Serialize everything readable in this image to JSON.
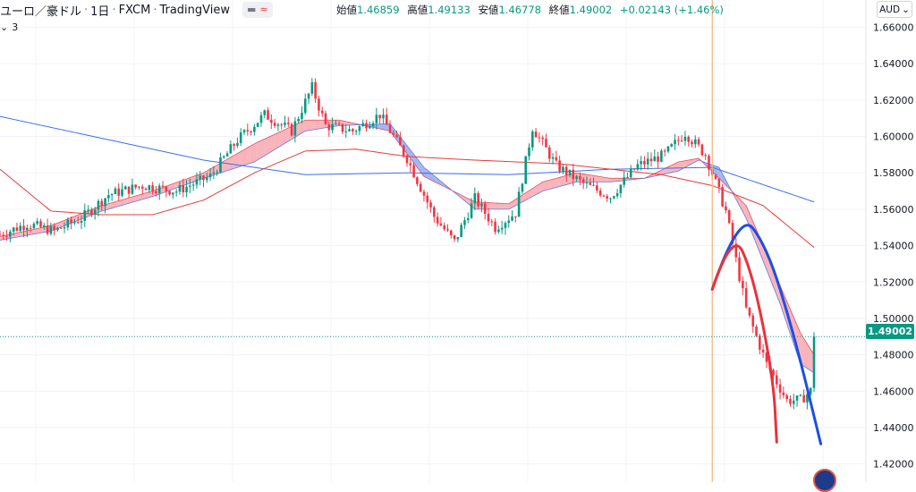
{
  "header": {
    "symbol": "ユーロ／豪ドル",
    "interval": "1日",
    "broker": "FXCM",
    "platform": "TradingView",
    "sep": "·",
    "ohlc": [
      {
        "k": "始値",
        "v": "1.46859"
      },
      {
        "k": "高値",
        "v": "1.49133"
      },
      {
        "k": "安値",
        "v": "1.46778"
      },
      {
        "k": "終値",
        "v": "1.49002"
      },
      {
        "k": "",
        "v": "+0.02143 (+1.46%)"
      }
    ]
  },
  "indicator_toggle": {
    "label": "3"
  },
  "currency_button": {
    "label": "AUD",
    "icon": "chevron-down-icon"
  },
  "last_price_tag": "1.49002",
  "colors": {
    "up": "#089981",
    "down": "#f23645",
    "cloud_red_fill": "#f7a5ae",
    "cloud_blue_fill": "#90a8f0",
    "ma_blue": "#3d6ff0",
    "ma_red": "#e83b3b",
    "arc_blue": "#1d4fe0",
    "arc_red": "#e8323e",
    "vline": "#f5b27a"
  },
  "chart_data": {
    "type": "candlestick",
    "y_axis": {
      "ticks": [
        "1.66000",
        "1.64000",
        "1.62000",
        "1.60000",
        "1.58000",
        "1.56000",
        "1.54000",
        "1.52000",
        "1.50000",
        "1.48000",
        "1.46000",
        "1.44000",
        "1.42000"
      ],
      "range": [
        1.41,
        1.675
      ]
    },
    "x_range": [
      0,
      240
    ],
    "last_price": 1.49002,
    "price_path": [
      [
        0,
        1.546
      ],
      [
        8,
        1.552
      ],
      [
        16,
        1.548
      ],
      [
        24,
        1.555
      ],
      [
        32,
        1.568
      ],
      [
        42,
        1.573
      ],
      [
        52,
        1.57
      ],
      [
        62,
        1.578
      ],
      [
        70,
        1.598
      ],
      [
        78,
        1.612
      ],
      [
        86,
        1.603
      ],
      [
        92,
        1.627
      ],
      [
        96,
        1.606
      ],
      [
        104,
        1.603
      ],
      [
        112,
        1.612
      ],
      [
        120,
        1.588
      ],
      [
        128,
        1.556
      ],
      [
        134,
        1.542
      ],
      [
        140,
        1.566
      ],
      [
        146,
        1.55
      ],
      [
        152,
        1.558
      ],
      [
        157,
        1.605
      ],
      [
        164,
        1.584
      ],
      [
        172,
        1.574
      ],
      [
        180,
        1.567
      ],
      [
        188,
        1.584
      ],
      [
        196,
        1.59
      ],
      [
        202,
        1.602
      ],
      [
        208,
        1.59
      ],
      [
        214,
        1.559
      ],
      [
        220,
        1.505
      ],
      [
        226,
        1.475
      ],
      [
        232,
        1.455
      ],
      [
        236,
        1.455
      ],
      [
        240,
        1.462
      ]
    ],
    "ma_blue": [
      [
        0,
        1.611
      ],
      [
        30,
        1.599
      ],
      [
        60,
        1.587
      ],
      [
        90,
        1.579
      ],
      [
        120,
        1.58
      ],
      [
        150,
        1.579
      ],
      [
        180,
        1.582
      ],
      [
        210,
        1.583
      ],
      [
        240,
        1.564
      ]
    ],
    "ma_red": [
      [
        0,
        1.582
      ],
      [
        15,
        1.559
      ],
      [
        30,
        1.557
      ],
      [
        45,
        1.557
      ],
      [
        60,
        1.565
      ],
      [
        75,
        1.58
      ],
      [
        90,
        1.592
      ],
      [
        105,
        1.593
      ],
      [
        120,
        1.589
      ],
      [
        140,
        1.587
      ],
      [
        165,
        1.585
      ],
      [
        180,
        1.582
      ],
      [
        195,
        1.579
      ],
      [
        210,
        1.573
      ],
      [
        225,
        1.562
      ],
      [
        240,
        1.539
      ]
    ],
    "cloud_a": [
      [
        0,
        1.545
      ],
      [
        15,
        1.551
      ],
      [
        30,
        1.562
      ],
      [
        45,
        1.57
      ],
      [
        60,
        1.58
      ],
      [
        75,
        1.596
      ],
      [
        90,
        1.609
      ],
      [
        100,
        1.609
      ],
      [
        115,
        1.603
      ],
      [
        125,
        1.578
      ],
      [
        140,
        1.564
      ],
      [
        150,
        1.563
      ],
      [
        160,
        1.575
      ],
      [
        170,
        1.58
      ],
      [
        180,
        1.577
      ],
      [
        190,
        1.577
      ],
      [
        200,
        1.586
      ],
      [
        206,
        1.588
      ],
      [
        212,
        1.577
      ],
      [
        220,
        1.562
      ],
      [
        230,
        1.518
      ],
      [
        236,
        1.492
      ],
      [
        240,
        1.48
      ]
    ],
    "cloud_b": [
      [
        0,
        1.543
      ],
      [
        15,
        1.548
      ],
      [
        30,
        1.559
      ],
      [
        45,
        1.567
      ],
      [
        60,
        1.577
      ],
      [
        75,
        1.586
      ],
      [
        90,
        1.603
      ],
      [
        100,
        1.606
      ],
      [
        115,
        1.607
      ],
      [
        125,
        1.583
      ],
      [
        140,
        1.56
      ],
      [
        150,
        1.56
      ],
      [
        160,
        1.57
      ],
      [
        170,
        1.575
      ],
      [
        180,
        1.575
      ],
      [
        190,
        1.577
      ],
      [
        200,
        1.581
      ],
      [
        206,
        1.587
      ],
      [
        212,
        1.583
      ],
      [
        220,
        1.555
      ],
      [
        230,
        1.508
      ],
      [
        236,
        1.475
      ],
      [
        240,
        1.47
      ]
    ],
    "annotations": {
      "vertical_line_x": 210,
      "blue_arc": [
        [
          210,
          1.516
        ],
        [
          218,
          1.559
        ],
        [
          226,
          1.54
        ],
        [
          234,
          1.492
        ],
        [
          242,
          1.431
        ]
      ],
      "red_arc": [
        [
          210,
          1.516
        ],
        [
          216,
          1.549
        ],
        [
          222,
          1.524
        ],
        [
          228,
          1.467
        ],
        [
          229,
          1.432
        ]
      ]
    }
  }
}
